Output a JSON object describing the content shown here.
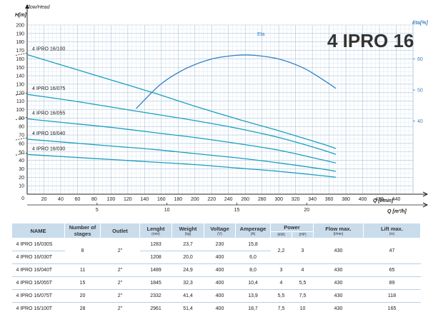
{
  "chart_data": {
    "type": "line",
    "title": "4 IPRO 16",
    "y_axis": {
      "label": "H[m]",
      "caption": "Flow/Head",
      "min": 0,
      "max": 200,
      "step": 10
    },
    "eta_axis": {
      "label": "Eta[%]",
      "ticks": [
        40,
        50,
        60
      ]
    },
    "x_axis_lmin": {
      "label": "Q [l/min]",
      "min": 0,
      "max": 460,
      "ticks": [
        20,
        40,
        60,
        80,
        100,
        120,
        140,
        160,
        180,
        200,
        220,
        240,
        260,
        280,
        300,
        320,
        340,
        360,
        380,
        400,
        420,
        440
      ]
    },
    "x_axis_m3h": {
      "label": "Q [m³/h]",
      "ticks": [
        5,
        10,
        15,
        20
      ]
    },
    "series": [
      {
        "name": "4 IPRO 16/100",
        "x": [
          0,
          50,
          100,
          150,
          200,
          250,
          300,
          350,
          368
        ],
        "y": [
          165,
          150,
          135,
          120,
          104,
          89,
          75,
          60,
          54
        ]
      },
      {
        "name": "4 IPRO 16/075",
        "x": [
          0,
          50,
          100,
          150,
          200,
          250,
          300,
          350,
          368
        ],
        "y": [
          118,
          111,
          103,
          95,
          87,
          78,
          67,
          53,
          47
        ]
      },
      {
        "name": "4 IPRO 16/055",
        "x": [
          0,
          50,
          100,
          150,
          200,
          250,
          300,
          350,
          368
        ],
        "y": [
          89,
          84,
          79,
          73,
          67,
          60,
          52,
          41,
          37
        ]
      },
      {
        "name": "4 IPRO 16/040",
        "x": [
          0,
          50,
          100,
          150,
          200,
          250,
          300,
          350,
          368
        ],
        "y": [
          65,
          61,
          57,
          53,
          48,
          43,
          37,
          30,
          27
        ]
      },
      {
        "name": "4 IPRO 16/030",
        "x": [
          0,
          50,
          100,
          150,
          200,
          250,
          300,
          350,
          368
        ],
        "y": [
          47,
          44,
          41,
          38,
          35,
          31,
          27,
          22,
          20
        ]
      }
    ],
    "eta_curve": {
      "name": "Eta",
      "x": [
        130,
        160,
        190,
        220,
        250,
        270,
        300,
        330,
        360,
        368
      ],
      "eta": [
        44,
        52,
        57,
        60,
        61.2,
        61.2,
        60,
        57,
        52,
        50.5
      ]
    }
  },
  "table": {
    "headers": {
      "name": "NAME",
      "stages": "Number of stages",
      "outlet": "Outlet",
      "lenght": "Lenght",
      "lenght_unit": "(mm)",
      "weight": "Weight",
      "weight_unit": "(kg)",
      "voltage": "Voltage",
      "voltage_unit": "(V)",
      "amperage": "Amperage",
      "amperage_unit": "(A)",
      "power": "Power",
      "kw": "(kW)",
      "hp": "(HP)",
      "flow": "Flow max.",
      "flow_unit": "(l/min)",
      "lift": "Lift max.",
      "lift_unit": "(m)"
    },
    "rows": [
      {
        "name": "4 IPRO 16/030S",
        "stages": "8",
        "outlet": "2\"",
        "lenght": "1283",
        "weight": "23,7",
        "voltage": "230",
        "amperage": "15,8",
        "kw": "2,2",
        "hp": "3",
        "flow": "430",
        "lift": "47"
      },
      {
        "name": "4 IPRO 16/030T",
        "lenght": "1208",
        "weight": "20,0",
        "voltage": "400",
        "amperage": "6,0"
      },
      {
        "name": "4 IPRO 16/040T",
        "stages": "11",
        "outlet": "2\"",
        "lenght": "1489",
        "weight": "24,9",
        "voltage": "400",
        "amperage": "8,0",
        "kw": "3",
        "hp": "4",
        "flow": "430",
        "lift": "65"
      },
      {
        "name": "4 IPRO 16/055T",
        "stages": "15",
        "outlet": "2\"",
        "lenght": "1845",
        "weight": "32,3",
        "voltage": "400",
        "amperage": "10,4",
        "kw": "4",
        "hp": "5,5",
        "flow": "430",
        "lift": "89"
      },
      {
        "name": "4 IPRO 16/075T",
        "stages": "20",
        "outlet": "2\"",
        "lenght": "2332",
        "weight": "41,4",
        "voltage": "400",
        "amperage": "13,9",
        "kw": "5,5",
        "hp": "7,5",
        "flow": "430",
        "lift": "118"
      },
      {
        "name": "4 IPRO 16/100T",
        "stages": "28",
        "outlet": "2\"",
        "lenght": "2961",
        "weight": "51,4",
        "voltage": "400",
        "amperage": "18,7",
        "kw": "7,5",
        "hp": "10",
        "flow": "430",
        "lift": "165"
      }
    ]
  },
  "colors": {
    "curve": "#1a9fc0",
    "eta": "#2f7fc4",
    "grid_major": "#a9c3da",
    "grid_minor": "#dbe7f2",
    "header_bg": "#c9dcec"
  }
}
